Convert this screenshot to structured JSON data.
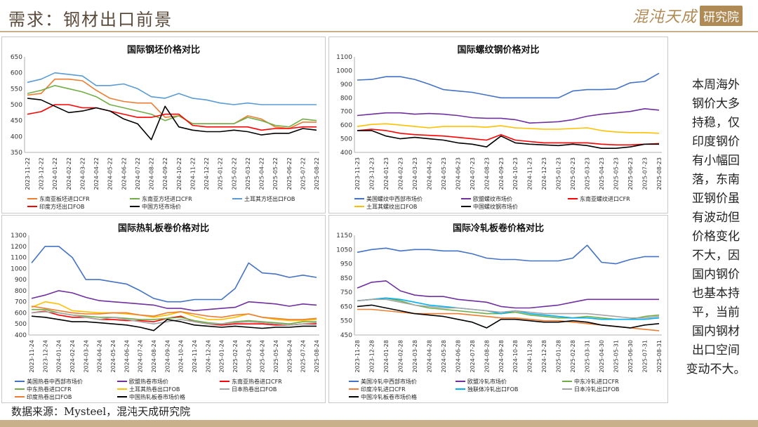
{
  "page": {
    "title": "需求：钢材出口前景",
    "logo_text": "混沌天成",
    "logo_box": "研究院",
    "source": "数据来源：Mysteel，混沌天成研究院",
    "side_text": [
      "本周海外",
      "钢价大多",
      "持稳，仅",
      "印度钢价",
      "有小幅回",
      "落，东南",
      "亚钢价虽",
      "有波动但",
      "价格变化",
      "不大，因",
      "国内钢价",
      "也基本持",
      "平，当前",
      "国内钢材",
      "出口空间",
      "变动不大。"
    ]
  },
  "chart_data": [
    {
      "type": "line",
      "title": "国际钢坯价格对比",
      "ylim": [
        350,
        650
      ],
      "yticks": [
        350,
        400,
        450,
        500,
        550,
        600,
        650
      ],
      "xticks": [
        "2023-11-22",
        "2023-12-22",
        "2024-01-22",
        "2024-02-22",
        "2024-03-22",
        "2024-04-22",
        "2024-05-22",
        "2024-06-22",
        "2024-07-22",
        "2024-08-22",
        "2024-09-22",
        "2024-10-22",
        "2024-11-22",
        "2024-12-22",
        "2025-01-22",
        "2025-02-22",
        "2025-03-22",
        "2025-04-22",
        "2025-05-22",
        "2025-06-22",
        "2025-07-22",
        "2025-08-22"
      ],
      "series": [
        {
          "name": "东南亚板坯进口CFR",
          "color": "#ed7d31",
          "values": [
            530,
            535,
            580,
            580,
            575,
            545,
            520,
            510,
            505,
            505,
            460,
            465,
            440,
            440,
            440,
            440,
            465,
            455,
            430,
            425,
            445,
            445
          ]
        },
        {
          "name": "东南亚方坯进口CFR",
          "color": "#70ad47",
          "values": [
            535,
            545,
            560,
            550,
            540,
            525,
            500,
            490,
            480,
            470,
            450,
            465,
            440,
            440,
            440,
            440,
            460,
            450,
            435,
            430,
            455,
            450
          ]
        },
        {
          "name": "土耳其方坯出口FOB",
          "color": "#5b9bd5",
          "values": [
            570,
            580,
            600,
            595,
            590,
            560,
            560,
            565,
            550,
            525,
            520,
            535,
            520,
            515,
            505,
            500,
            505,
            500,
            500,
            500,
            500,
            500
          ]
        },
        {
          "name": "印度方坯出口FOB",
          "color": "#ff0000",
          "values": [
            470,
            478,
            500,
            500,
            490,
            490,
            480,
            470,
            460,
            460,
            470,
            470,
            435,
            430,
            430,
            430,
            430,
            420,
            425,
            425,
            430,
            430
          ]
        },
        {
          "name": "中国方坯市场价",
          "color": "#000000",
          "values": [
            520,
            515,
            495,
            475,
            480,
            490,
            480,
            455,
            440,
            390,
            495,
            430,
            420,
            415,
            415,
            420,
            415,
            405,
            410,
            410,
            425,
            420
          ]
        }
      ]
    },
    {
      "type": "line",
      "title": "国际螺纹钢价格对比",
      "ylim": [
        400,
        1100
      ],
      "yticks": [
        400,
        500,
        600,
        700,
        800,
        900,
        1000,
        1100
      ],
      "xticks": [
        "2023-11-23",
        "2023-12-23",
        "2024-01-23",
        "2024-02-23",
        "2024-03-23",
        "2024-04-23",
        "2024-05-23",
        "2024-06-23",
        "2024-07-23",
        "2024-08-23",
        "2024-09-23",
        "2024-10-23",
        "2024-11-23",
        "2024-12-23",
        "2025-01-23",
        "2025-02-23",
        "2025-03-23",
        "2025-04-23",
        "2025-05-23",
        "2025-06-23",
        "2025-07-23",
        "2025-08-23"
      ],
      "series": [
        {
          "name": "美国螺纹中西部市场价",
          "color": "#4472c4",
          "values": [
            930,
            935,
            955,
            955,
            935,
            900,
            860,
            850,
            840,
            820,
            800,
            800,
            800,
            800,
            800,
            850,
            860,
            860,
            865,
            910,
            920,
            980
          ]
        },
        {
          "name": "欧盟螺纹市场价",
          "color": "#7030a0",
          "values": [
            670,
            680,
            690,
            690,
            680,
            685,
            680,
            670,
            655,
            650,
            650,
            640,
            615,
            620,
            625,
            640,
            665,
            680,
            690,
            700,
            720,
            710
          ]
        },
        {
          "name": "东南亚螺纹进口CFR",
          "color": "#ff0000",
          "values": [
            560,
            570,
            560,
            540,
            530,
            525,
            520,
            510,
            500,
            490,
            530,
            490,
            480,
            470,
            470,
            470,
            470,
            460,
            455,
            455,
            460,
            465
          ]
        },
        {
          "name": "土耳其螺纹出口FOB",
          "color": "#ffc000",
          "values": [
            590,
            605,
            610,
            600,
            590,
            580,
            590,
            590,
            590,
            585,
            595,
            580,
            575,
            570,
            570,
            575,
            580,
            560,
            550,
            545,
            545,
            540
          ]
        },
        {
          "name": "中国螺纹钢市场价",
          "color": "#000000",
          "values": [
            560,
            560,
            520,
            500,
            510,
            500,
            490,
            470,
            460,
            440,
            520,
            470,
            460,
            455,
            450,
            460,
            450,
            430,
            430,
            440,
            460,
            460
          ]
        }
      ]
    },
    {
      "type": "line",
      "title": "国际热轧板卷价格对比",
      "ylim": [
        400,
        1300
      ],
      "yticks": [
        400,
        500,
        600,
        700,
        800,
        900,
        1000,
        1100,
        1200,
        1300
      ],
      "xticks": [
        "2023-11-24",
        "2023-12-24",
        "2024-01-24",
        "2024-02-24",
        "2024-03-24",
        "2024-04-24",
        "2024-05-24",
        "2024-06-24",
        "2024-07-24",
        "2024-08-24",
        "2024-09-24",
        "2024-10-24",
        "2024-11-24",
        "2024-12-24",
        "2025-01-24",
        "2025-02-24",
        "2025-03-24",
        "2025-04-24",
        "2025-05-24",
        "2025-06-24",
        "2025-07-24",
        "2025-08-24"
      ],
      "series": [
        {
          "name": "美国热卷中西部市场价",
          "color": "#4472c4",
          "values": [
            1050,
            1200,
            1200,
            1100,
            900,
            900,
            880,
            860,
            800,
            730,
            700,
            700,
            720,
            720,
            720,
            820,
            1050,
            960,
            950,
            920,
            940,
            920
          ]
        },
        {
          "name": "欧盟热卷市场价",
          "color": "#7030a0",
          "values": [
            730,
            760,
            800,
            780,
            740,
            710,
            700,
            690,
            680,
            670,
            640,
            640,
            620,
            630,
            640,
            650,
            700,
            690,
            680,
            660,
            680,
            670
          ]
        },
        {
          "name": "东南亚热卷进口CFR",
          "color": "#ff0000",
          "values": [
            600,
            615,
            580,
            560,
            560,
            540,
            540,
            530,
            530,
            520,
            550,
            570,
            520,
            500,
            490,
            500,
            500,
            500,
            490,
            490,
            500,
            500
          ]
        },
        {
          "name": "中东热卷进口CFR",
          "color": "#70ad47",
          "values": [
            630,
            630,
            600,
            580,
            570,
            560,
            560,
            550,
            540,
            540,
            550,
            560,
            530,
            510,
            500,
            520,
            530,
            520,
            510,
            500,
            520,
            520
          ]
        },
        {
          "name": "土耳其热卷出口FOB",
          "color": "#ffc000",
          "values": [
            650,
            700,
            680,
            620,
            610,
            600,
            600,
            590,
            580,
            560,
            580,
            610,
            570,
            540,
            540,
            560,
            590,
            560,
            540,
            530,
            530,
            540
          ]
        },
        {
          "name": "日本热卷出口FOB",
          "color": "#a5a5a5",
          "values": [
            600,
            610,
            600,
            580,
            560,
            540,
            560,
            540,
            520,
            500,
            520,
            540,
            520,
            500,
            500,
            510,
            520,
            510,
            500,
            490,
            500,
            510
          ]
        },
        {
          "name": "印度热卷出口FOB",
          "color": "#ed7d31",
          "values": [
            660,
            640,
            620,
            600,
            590,
            590,
            600,
            600,
            580,
            570,
            600,
            610,
            590,
            570,
            560,
            580,
            590,
            560,
            550,
            540,
            540,
            550
          ]
        },
        {
          "name": "中国热轧板卷市场价格",
          "color": "#000000",
          "values": [
            570,
            560,
            540,
            520,
            520,
            510,
            500,
            490,
            470,
            440,
            540,
            520,
            490,
            480,
            470,
            480,
            470,
            460,
            470,
            470,
            480,
            480
          ]
        }
      ]
    },
    {
      "type": "line",
      "title": "国际冷轧板卷价格对比",
      "ylim": [
        450,
        1150
      ],
      "yticks": [
        450,
        550,
        650,
        750,
        850,
        950,
        1050,
        1150
      ],
      "xticks": [
        "2023-11-28",
        "2023-12-28",
        "2024-01-28",
        "2024-02-28",
        "2024-03-28",
        "2024-04-28",
        "2024-05-28",
        "2024-06-28",
        "2024-07-28",
        "2024-08-28",
        "2024-09-28",
        "2024-10-28",
        "2024-11-28",
        "2024-12-28",
        "2025-01-28",
        "2025-02-28",
        "2025-03-31",
        "2025-04-30",
        "2025-05-31",
        "2025-06-30",
        "2025-07-31",
        "2025-08-31"
      ],
      "series": [
        {
          "name": "美国冷轧中西部市场价",
          "color": "#4472c4",
          "values": [
            1030,
            1050,
            1060,
            1040,
            1050,
            1050,
            1040,
            1040,
            1020,
            990,
            980,
            980,
            970,
            970,
            970,
            990,
            1080,
            960,
            950,
            980,
            1000,
            1000
          ]
        },
        {
          "name": "欧盟冷轧市场价",
          "color": "#7030a0",
          "values": [
            780,
            820,
            830,
            760,
            730,
            720,
            720,
            700,
            690,
            680,
            650,
            640,
            640,
            650,
            660,
            680,
            700,
            700,
            700,
            700,
            700,
            700
          ]
        },
        {
          "name": "中东冷轧进口CFR",
          "color": "#70ad47",
          "values": [
            690,
            700,
            710,
            690,
            660,
            640,
            630,
            620,
            610,
            600,
            600,
            610,
            590,
            580,
            570,
            570,
            580,
            570,
            560,
            560,
            580,
            590
          ]
        },
        {
          "name": "印度冷轧进口CFR",
          "color": "#ed7d31",
          "values": [
            630,
            630,
            620,
            610,
            600,
            600,
            600,
            600,
            590,
            580,
            570,
            570,
            560,
            550,
            550,
            540,
            530,
            520,
            510,
            500,
            490,
            480
          ]
        },
        {
          "name": "独联体冷轧出口FOB",
          "color": "#00b0f0",
          "values": [
            690,
            700,
            710,
            700,
            680,
            660,
            650,
            640,
            630,
            620,
            600,
            620,
            600,
            590,
            580,
            570,
            570,
            560,
            560,
            560,
            560,
            570
          ]
        },
        {
          "name": "日本冷轧出口FOB",
          "color": "#a5a5a5",
          "values": [
            690,
            700,
            700,
            680,
            660,
            650,
            640,
            640,
            630,
            620,
            610,
            620,
            610,
            600,
            600,
            600,
            600,
            590,
            580,
            570,
            570,
            580
          ]
        },
        {
          "name": "中国冷轧板卷市场价格",
          "color": "#000000",
          "values": [
            650,
            660,
            640,
            620,
            600,
            590,
            580,
            560,
            540,
            500,
            560,
            560,
            550,
            540,
            540,
            550,
            540,
            520,
            510,
            500,
            520,
            530
          ]
        }
      ]
    }
  ]
}
